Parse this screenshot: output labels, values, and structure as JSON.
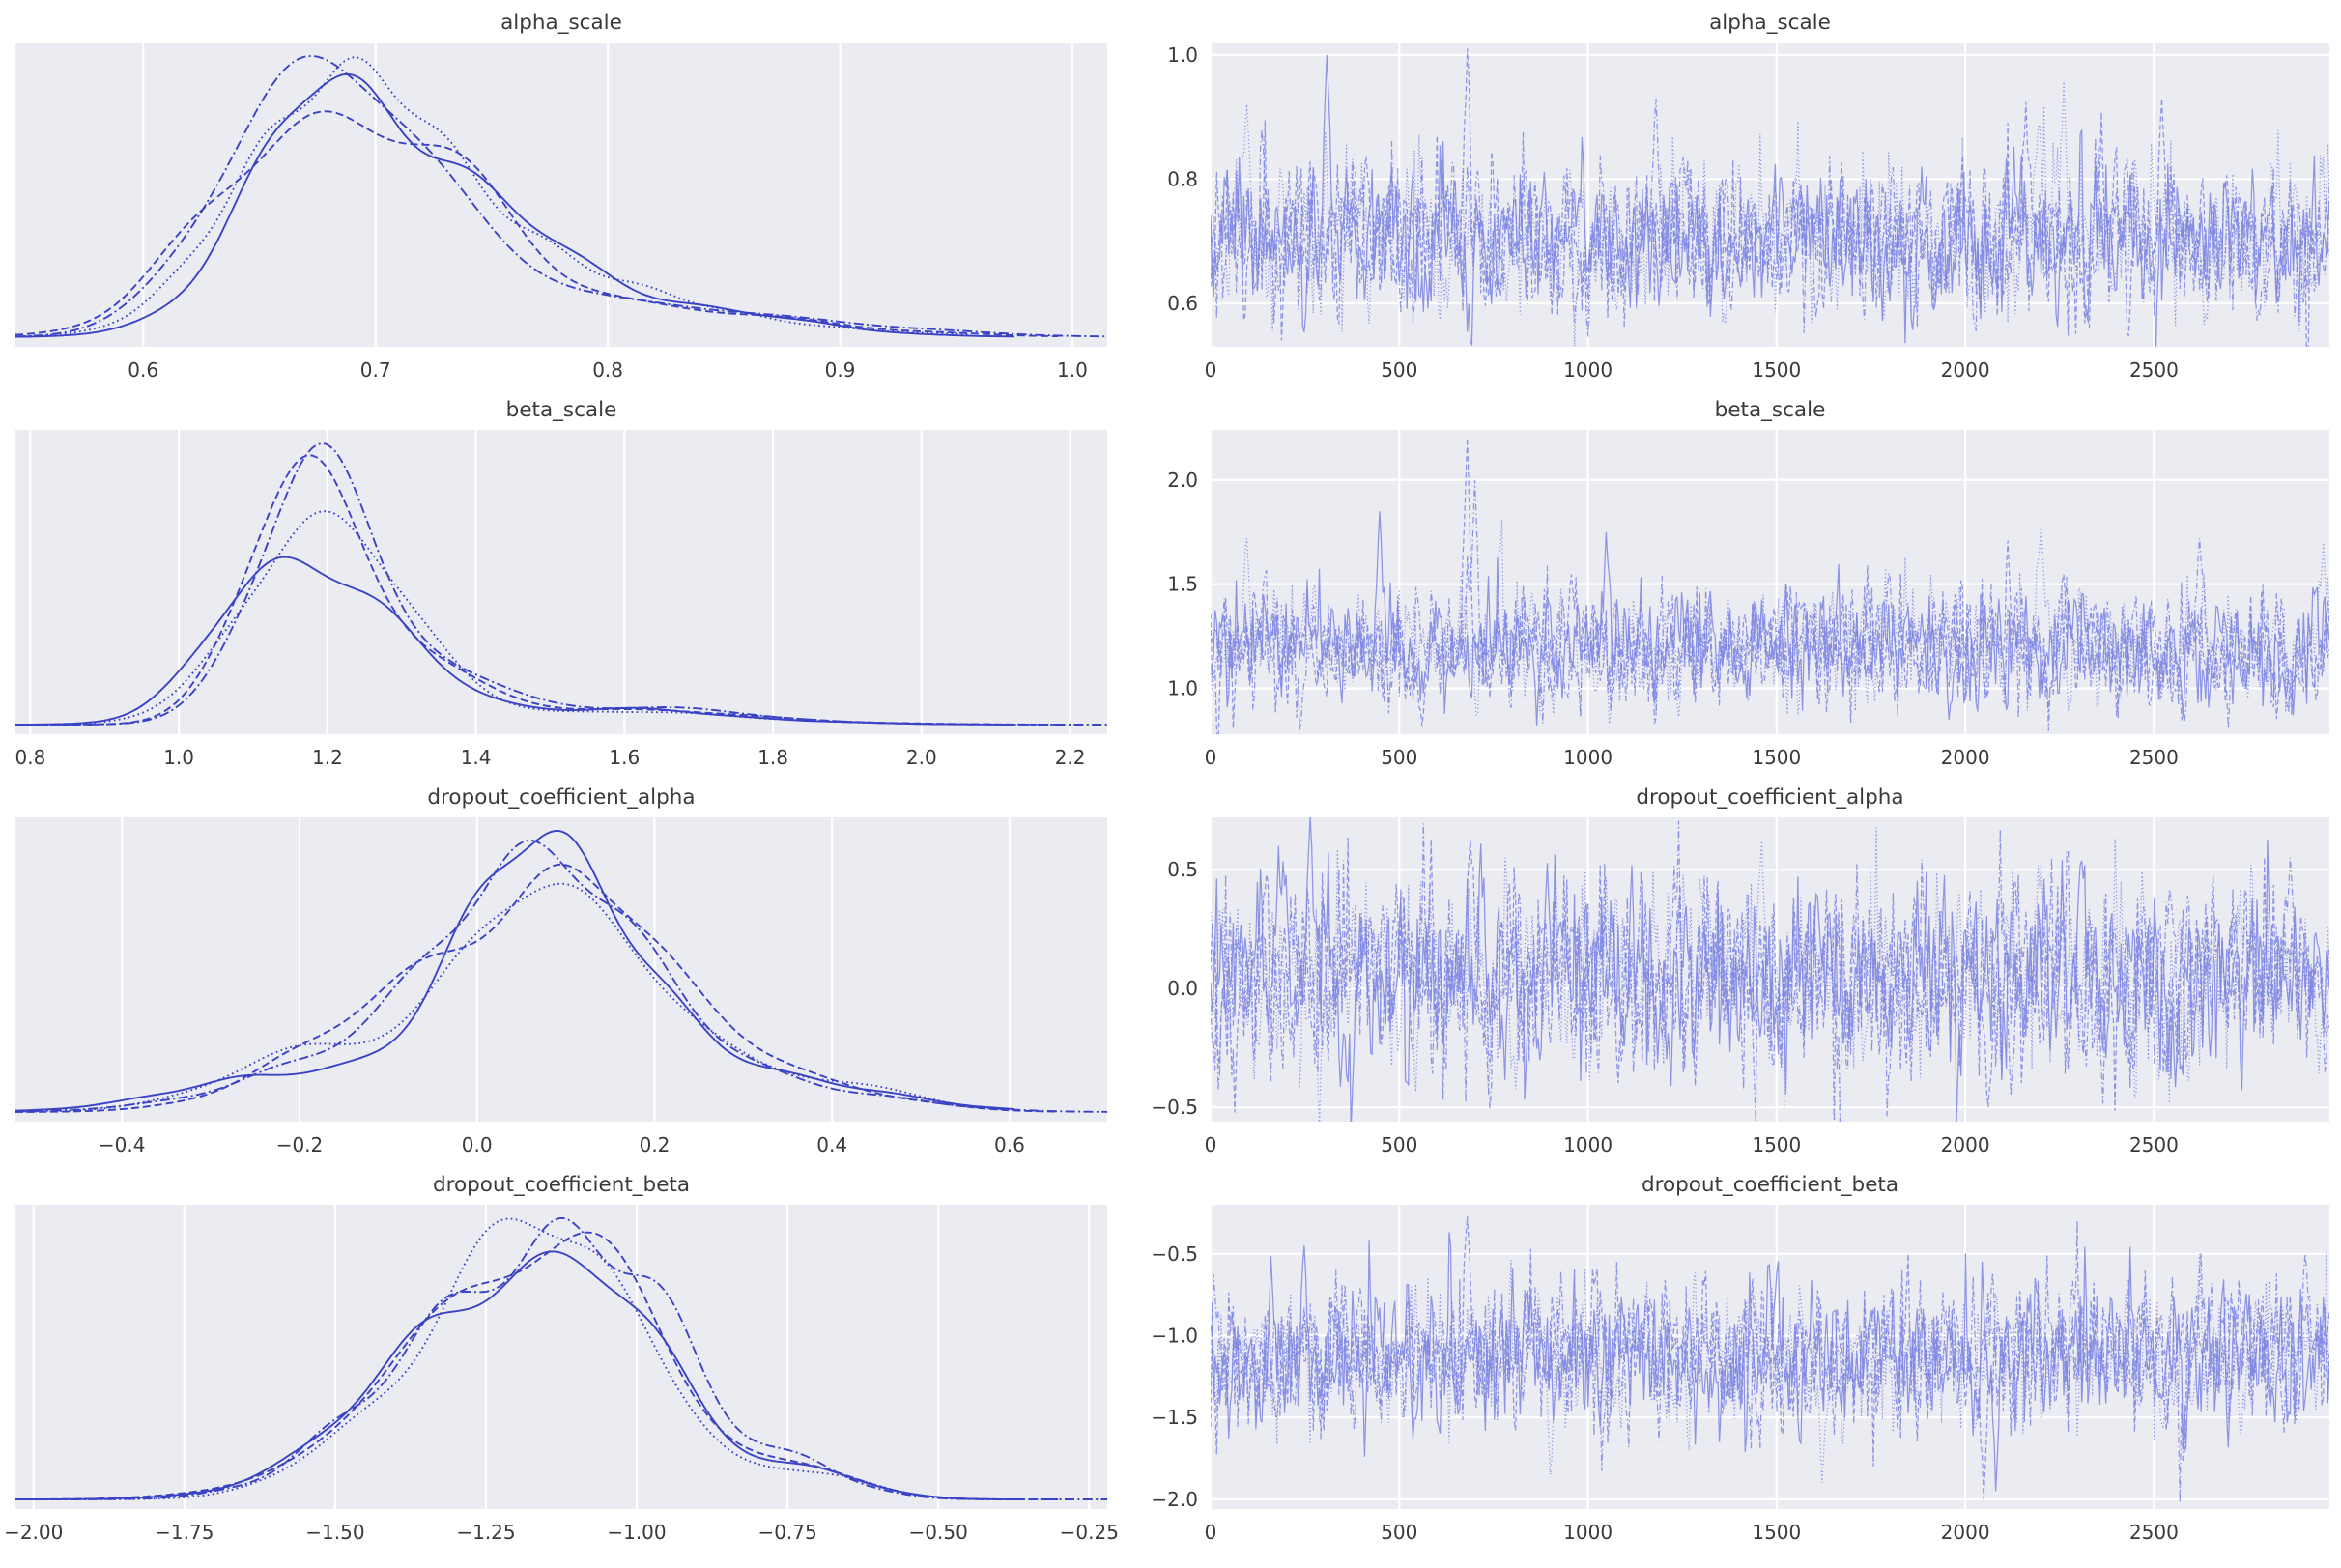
{
  "figure": {
    "kind": "mcmc-trace-plot",
    "columns": [
      "posterior density (KDE)",
      "trace"
    ],
    "n_chains": 4,
    "parameters": [
      "alpha_scale",
      "beta_scale",
      "dropout_coefficient_alpha",
      "dropout_coefficient_beta"
    ],
    "grid": "on",
    "legend": "none"
  },
  "style": {
    "panel_bg": "#ebebf2",
    "grid_color": "#ffffff",
    "kde_line_color": "#3a43c4",
    "trace_line_color": "#7d85e2",
    "text_color": "#3a3a3a"
  },
  "chart_data": [
    {
      "type": "line",
      "kind": "kde",
      "title": "alpha_scale",
      "xlim": [
        0.545,
        1.015
      ],
      "xtick_vals": [
        0.6,
        0.7,
        0.8,
        0.9,
        1.0
      ],
      "xtick_labels": [
        "0.6",
        "0.7",
        "0.8",
        "0.9",
        "1.0"
      ],
      "n_chains": 4,
      "line_styles": [
        "solid",
        "dashed",
        "dotted",
        "dashdot"
      ],
      "density_mixture": [
        {
          "mu": 0.67,
          "sigma": 0.04,
          "w": 0.5
        },
        {
          "mu": 0.728,
          "sigma": 0.046,
          "w": 0.38
        },
        {
          "mu": 0.825,
          "sigma": 0.065,
          "w": 0.12
        }
      ],
      "summary": {
        "mean": 0.7,
        "sd": 0.06,
        "peak_x": 0.69
      }
    },
    {
      "type": "line",
      "kind": "trace",
      "title": "alpha_scale",
      "xlim": [
        0,
        2965
      ],
      "xtick_vals": [
        0,
        500,
        1000,
        1500,
        2000,
        2500
      ],
      "xtick_labels": [
        "0",
        "500",
        "1000",
        "1500",
        "2000",
        "2500"
      ],
      "ylim": [
        0.53,
        1.02
      ],
      "ytick_vals": [
        0.6,
        0.8,
        1.0
      ],
      "ytick_labels": [
        "0.6",
        "0.8",
        "1.0"
      ],
      "n_draws": 2965,
      "n_chains": 4,
      "line_styles": [
        "solid",
        "dashed",
        "dotted",
        "dashdot"
      ],
      "mean": 0.705,
      "sd": 0.05,
      "spikes": [
        {
          "x": 95,
          "v": 0.92,
          "chain": 2
        },
        {
          "x": 310,
          "v": 1.0,
          "chain": 0
        },
        {
          "x": 680,
          "v": 1.01,
          "chain": 1
        },
        {
          "x": 1180,
          "v": 0.93,
          "chain": 3
        },
        {
          "x": 2260,
          "v": 0.96,
          "chain": 2
        },
        {
          "x": 2520,
          "v": 0.93,
          "chain": 1
        }
      ]
    },
    {
      "type": "line",
      "kind": "kde",
      "title": "beta_scale",
      "xlim": [
        0.78,
        2.25
      ],
      "xtick_vals": [
        0.8,
        1.0,
        1.2,
        1.4,
        1.6,
        1.8,
        2.0,
        2.2
      ],
      "xtick_labels": [
        "0.8",
        "1.0",
        "1.2",
        "1.4",
        "1.6",
        "1.8",
        "2.0",
        "2.2"
      ],
      "n_chains": 4,
      "line_styles": [
        "solid",
        "dashed",
        "dotted",
        "dashdot"
      ],
      "density_mixture": [
        {
          "mu": 1.155,
          "sigma": 0.082,
          "w": 0.66
        },
        {
          "mu": 1.3,
          "sigma": 0.1,
          "w": 0.24
        },
        {
          "mu": 1.55,
          "sigma": 0.17,
          "w": 0.1
        }
      ],
      "summary": {
        "mean": 1.21,
        "sd": 0.14,
        "peak_x": 1.17
      }
    },
    {
      "type": "line",
      "kind": "trace",
      "title": "beta_scale",
      "xlim": [
        0,
        2965
      ],
      "xtick_vals": [
        0,
        500,
        1000,
        1500,
        2000,
        2500
      ],
      "xtick_labels": [
        "0",
        "500",
        "1000",
        "1500",
        "2000",
        "2500"
      ],
      "ylim": [
        0.78,
        2.24
      ],
      "ytick_vals": [
        1.0,
        1.5,
        2.0
      ],
      "ytick_labels": [
        "1.0",
        "1.5",
        "2.0"
      ],
      "n_draws": 2965,
      "n_chains": 4,
      "line_styles": [
        "solid",
        "dashed",
        "dotted",
        "dashdot"
      ],
      "mean": 1.19,
      "sd": 0.115,
      "spikes": [
        {
          "x": 95,
          "v": 1.72,
          "chain": 2
        },
        {
          "x": 450,
          "v": 1.85,
          "chain": 0
        },
        {
          "x": 560,
          "v": 0.82,
          "chain": 1
        },
        {
          "x": 680,
          "v": 2.2,
          "chain": 1
        },
        {
          "x": 700,
          "v": 2.0,
          "chain": 3
        },
        {
          "x": 1050,
          "v": 1.75,
          "chain": 0
        },
        {
          "x": 2200,
          "v": 1.78,
          "chain": 2
        },
        {
          "x": 2620,
          "v": 1.72,
          "chain": 3
        },
        {
          "x": 2950,
          "v": 1.7,
          "chain": 2
        }
      ]
    },
    {
      "type": "line",
      "kind": "kde",
      "title": "dropout_coefficient_alpha",
      "xlim": [
        -0.52,
        0.71
      ],
      "xtick_vals": [
        -0.4,
        -0.2,
        0.0,
        0.2,
        0.4,
        0.6
      ],
      "xtick_labels": [
        "−0.4",
        "−0.2",
        "0.0",
        "0.2",
        "0.4",
        "0.6"
      ],
      "n_chains": 4,
      "line_styles": [
        "solid",
        "dashed",
        "dotted",
        "dashdot"
      ],
      "density_mixture": [
        {
          "mu": -0.17,
          "sigma": 0.11,
          "w": 0.15
        },
        {
          "mu": 0.015,
          "sigma": 0.085,
          "w": 0.34
        },
        {
          "mu": 0.105,
          "sigma": 0.075,
          "w": 0.27
        },
        {
          "mu": 0.215,
          "sigma": 0.085,
          "w": 0.17
        },
        {
          "mu": 0.37,
          "sigma": 0.1,
          "w": 0.07
        }
      ],
      "summary": {
        "mean": 0.05,
        "sd": 0.17,
        "peak_x": 0.02
      }
    },
    {
      "type": "line",
      "kind": "trace",
      "title": "dropout_coefficient_alpha",
      "xlim": [
        0,
        2965
      ],
      "xtick_vals": [
        0,
        500,
        1000,
        1500,
        2000,
        2500
      ],
      "xtick_labels": [
        "0",
        "500",
        "1000",
        "1500",
        "2000",
        "2500"
      ],
      "ylim": [
        -0.56,
        0.72
      ],
      "ytick_vals": [
        -0.5,
        0.0,
        0.5
      ],
      "ytick_labels": [
        "−0.5",
        "0.0",
        "0.5"
      ],
      "n_draws": 2965,
      "n_chains": 4,
      "line_styles": [
        "solid",
        "dashed",
        "dotted",
        "dashdot"
      ],
      "mean": 0.05,
      "sd": 0.16,
      "spikes": [
        {
          "x": 180,
          "v": 0.6,
          "chain": 0
        },
        {
          "x": 265,
          "v": 0.72,
          "chain": 0
        },
        {
          "x": 690,
          "v": 0.63,
          "chain": 1
        },
        {
          "x": 1460,
          "v": 0.62,
          "chain": 2
        },
        {
          "x": 2060,
          "v": -0.5,
          "chain": 1
        },
        {
          "x": 2120,
          "v": -0.45,
          "chain": 3
        },
        {
          "x": 2470,
          "v": 0.5,
          "chain": 2
        },
        {
          "x": 2860,
          "v": 0.55,
          "chain": 3
        }
      ]
    },
    {
      "type": "line",
      "kind": "kde",
      "title": "dropout_coefficient_beta",
      "xlim": [
        -2.03,
        -0.22
      ],
      "xtick_vals": [
        -2.0,
        -1.75,
        -1.5,
        -1.25,
        -1.0,
        -0.75,
        -0.5,
        -0.25
      ],
      "xtick_labels": [
        "−2.00",
        "−1.75",
        "−1.50",
        "−1.25",
        "−1.00",
        "−0.75",
        "−0.50",
        "−0.25"
      ],
      "n_chains": 4,
      "line_styles": [
        "solid",
        "dashed",
        "dotted",
        "dashdot"
      ],
      "density_mixture": [
        {
          "mu": -1.21,
          "sigma": 0.13,
          "w": 0.5
        },
        {
          "mu": -1.04,
          "sigma": 0.11,
          "w": 0.3
        },
        {
          "mu": -1.43,
          "sigma": 0.14,
          "w": 0.15
        },
        {
          "mu": -0.73,
          "sigma": 0.09,
          "w": 0.05
        }
      ],
      "summary": {
        "mean": -1.15,
        "sd": 0.19,
        "peak_x": -1.17
      }
    },
    {
      "type": "line",
      "kind": "trace",
      "title": "dropout_coefficient_beta",
      "xlim": [
        0,
        2965
      ],
      "xtick_vals": [
        0,
        500,
        1000,
        1500,
        2000,
        2500
      ],
      "xtick_labels": [
        "0",
        "500",
        "1000",
        "1500",
        "2000",
        "2500"
      ],
      "ylim": [
        -2.06,
        -0.2
      ],
      "ytick_vals": [
        -2.0,
        -1.5,
        -1.0,
        -0.5
      ],
      "ytick_labels": [
        "−2.0",
        "−1.5",
        "−1.0",
        "−0.5"
      ],
      "n_draws": 2965,
      "n_chains": 4,
      "line_styles": [
        "solid",
        "dashed",
        "dotted",
        "dashdot"
      ],
      "mean": -1.13,
      "sd": 0.18,
      "spikes": [
        {
          "x": 250,
          "v": -0.45,
          "chain": 0
        },
        {
          "x": 680,
          "v": -0.27,
          "chain": 1
        },
        {
          "x": 900,
          "v": -1.85,
          "chain": 2
        },
        {
          "x": 1620,
          "v": -1.9,
          "chain": 2
        },
        {
          "x": 2050,
          "v": -2.0,
          "chain": 1
        },
        {
          "x": 2080,
          "v": -1.95,
          "chain": 0
        },
        {
          "x": 2900,
          "v": -0.5,
          "chain": 3
        }
      ]
    }
  ]
}
